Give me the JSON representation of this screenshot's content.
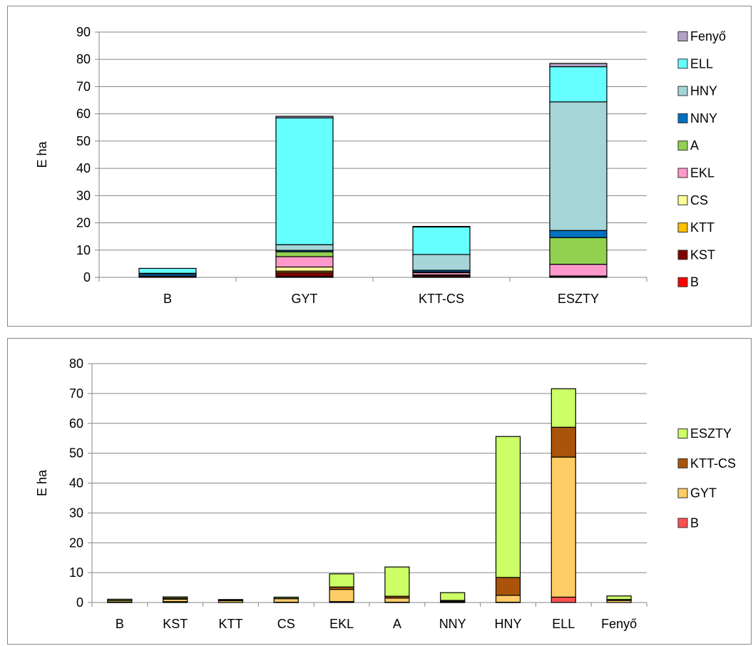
{
  "chart_data": [
    {
      "type": "bar",
      "stacked": true,
      "title": "",
      "xlabel": "",
      "ylabel": "E ha",
      "ylim": [
        0,
        90
      ],
      "ytick_step": 10,
      "grid": true,
      "legend_position": "right",
      "categories": [
        "B",
        "GYT",
        "KTT-CS",
        "ESZTY"
      ],
      "series": [
        {
          "name": "B",
          "color": "#FF0000",
          "values": [
            0,
            0.3,
            0.2,
            0.3
          ]
        },
        {
          "name": "KST",
          "color": "#7F0000",
          "values": [
            0.5,
            1.5,
            0.5,
            0.2
          ]
        },
        {
          "name": "KTT",
          "color": "#FFC000",
          "values": [
            0,
            0.5,
            0,
            0
          ]
        },
        {
          "name": "CS",
          "color": "#FFFF99",
          "values": [
            0,
            1.5,
            0.2,
            0
          ]
        },
        {
          "name": "EKL",
          "color": "#FF99CC",
          "values": [
            0,
            3.8,
            0.8,
            4.3
          ]
        },
        {
          "name": "A",
          "color": "#92D050",
          "values": [
            0,
            1.8,
            0.3,
            9.8
          ]
        },
        {
          "name": "NNY",
          "color": "#0070C0",
          "values": [
            0.8,
            0.5,
            0.6,
            2.6
          ]
        },
        {
          "name": "HNY",
          "color": "#A6D5D8",
          "values": [
            0.2,
            2.1,
            5.8,
            47.2
          ]
        },
        {
          "name": "ELL",
          "color": "#66FFFF",
          "values": [
            1.8,
            46.5,
            10.1,
            12.9
          ]
        },
        {
          "name": "Fenyő",
          "color": "#B3A2C7",
          "values": [
            0,
            0.6,
            0.2,
            1.2
          ]
        }
      ]
    },
    {
      "type": "bar",
      "stacked": true,
      "title": "",
      "xlabel": "",
      "ylabel": "E ha",
      "ylim": [
        0,
        80
      ],
      "ytick_step": 10,
      "grid": true,
      "legend_position": "right",
      "categories": [
        "B",
        "KST",
        "KTT",
        "CS",
        "EKL",
        "A",
        "NNY",
        "HNY",
        "ELL",
        "Fenyő"
      ],
      "series": [
        {
          "name": "B",
          "color": "#FF5050",
          "values": [
            0.1,
            0.3,
            0,
            0.1,
            0.3,
            0.1,
            0.1,
            0.1,
            1.8,
            0
          ]
        },
        {
          "name": "GYT",
          "color": "#FFCC66",
          "values": [
            0.5,
            0.8,
            0.6,
            1.2,
            4.1,
            1.4,
            0.3,
            2.3,
            46.9,
            0.7
          ]
        },
        {
          "name": "KTT-CS",
          "color": "#A9540A",
          "values": [
            0.1,
            0.4,
            0.2,
            0.1,
            0.8,
            0.6,
            0.3,
            6.0,
            10.0,
            0.3
          ]
        },
        {
          "name": "ESZTY",
          "color": "#CCFF66",
          "values": [
            0.4,
            0.4,
            0.2,
            0.4,
            4.4,
            9.8,
            2.6,
            47.2,
            12.9,
            1.2
          ]
        }
      ]
    }
  ]
}
